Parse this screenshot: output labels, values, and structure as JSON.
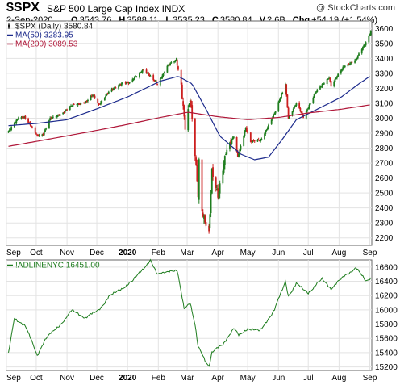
{
  "header": {
    "symbol": "$SPX",
    "name": "S&P 500 Large Cap Index",
    "exchange": "INDX",
    "source": "@ StockCharts.com",
    "date": "2-Sep-2020",
    "ohlc": {
      "open_label": "O",
      "open": "3543.76",
      "high_label": "H",
      "high": "3588.11",
      "low_label": "L",
      "low": "3535.23",
      "close_label": "C",
      "close": "3580.84",
      "volume_label": "V",
      "volume": "2.6B",
      "change_label": "Chg",
      "change": "+54.19 (+1.54%)"
    }
  },
  "chart_data": [
    {
      "type": "candlestick",
      "legend": [
        {
          "label": "$SPX (Daily) 3580.84",
          "color": "#1a1a1a"
        },
        {
          "label": "MA(50) 3283.95",
          "color": "#1c2a8c"
        },
        {
          "label": "MA(200) 3089.53",
          "color": "#b0183a"
        }
      ],
      "ylim": [
        2150,
        3650
      ],
      "y_ticks": [
        2200,
        2300,
        2400,
        2500,
        2600,
        2700,
        2800,
        2900,
        3000,
        3100,
        3200,
        3300,
        3400,
        3500,
        3600
      ],
      "x_ticks": [
        "Sep",
        "Oct",
        "Nov",
        "Dec",
        "2020",
        "Feb",
        "Mar",
        "Apr",
        "May",
        "Jun",
        "Jul",
        "Aug",
        "Sep"
      ],
      "x_range": [
        "2019-09-01",
        "2020-09-03"
      ],
      "colors": {
        "up": "#1e7d1e",
        "down": "#cc1f1f",
        "ma50": "#1c2a8c",
        "ma200": "#b0183a",
        "grid": "#e3e3e3"
      },
      "price_series": [
        [
          "2019-09-03",
          2906
        ],
        [
          "2019-09-13",
          3007
        ],
        [
          "2019-09-19",
          3006
        ],
        [
          "2019-10-02",
          2887
        ],
        [
          "2019-10-08",
          2893
        ],
        [
          "2019-10-15",
          2995
        ],
        [
          "2019-10-28",
          3039
        ],
        [
          "2019-11-08",
          3093
        ],
        [
          "2019-11-20",
          3108
        ],
        [
          "2019-11-27",
          3153
        ],
        [
          "2019-12-03",
          3093
        ],
        [
          "2019-12-12",
          3168
        ],
        [
          "2019-12-27",
          3240
        ],
        [
          "2020-01-03",
          3235
        ],
        [
          "2020-01-17",
          3329
        ],
        [
          "2020-01-31",
          3225
        ],
        [
          "2020-02-10",
          3352
        ],
        [
          "2020-02-19",
          3386
        ],
        [
          "2020-02-24",
          3225
        ],
        [
          "2020-02-28",
          2954
        ],
        [
          "2020-03-04",
          3130
        ],
        [
          "2020-03-09",
          2746
        ],
        [
          "2020-03-12",
          2480
        ],
        [
          "2020-03-13",
          2711
        ],
        [
          "2020-03-16",
          2386
        ],
        [
          "2020-03-20",
          2305
        ],
        [
          "2020-03-23",
          2237
        ],
        [
          "2020-03-26",
          2630
        ],
        [
          "2020-04-01",
          2470
        ],
        [
          "2020-04-09",
          2790
        ],
        [
          "2020-04-17",
          2875
        ],
        [
          "2020-04-21",
          2737
        ],
        [
          "2020-04-29",
          2940
        ],
        [
          "2020-05-04",
          2842
        ],
        [
          "2020-05-14",
          2852
        ],
        [
          "2020-05-29",
          3044
        ],
        [
          "2020-06-08",
          3232
        ],
        [
          "2020-06-11",
          3002
        ],
        [
          "2020-06-19",
          3098
        ],
        [
          "2020-06-26",
          3009
        ],
        [
          "2020-07-08",
          3169
        ],
        [
          "2020-07-22",
          3276
        ],
        [
          "2020-07-24",
          3216
        ],
        [
          "2020-08-06",
          3349
        ],
        [
          "2020-08-18",
          3390
        ],
        [
          "2020-08-28",
          3508
        ],
        [
          "2020-09-02",
          3581
        ]
      ],
      "ma50": [
        [
          "2019-09-03",
          2950
        ],
        [
          "2019-10-01",
          2965
        ],
        [
          "2019-11-01",
          2990
        ],
        [
          "2019-12-02",
          3065
        ],
        [
          "2020-01-02",
          3145
        ],
        [
          "2020-02-03",
          3248
        ],
        [
          "2020-02-21",
          3280
        ],
        [
          "2020-03-06",
          3230
        ],
        [
          "2020-03-20",
          3060
        ],
        [
          "2020-04-03",
          2880
        ],
        [
          "2020-04-24",
          2760
        ],
        [
          "2020-05-08",
          2722
        ],
        [
          "2020-05-22",
          2740
        ],
        [
          "2020-06-05",
          2860
        ],
        [
          "2020-06-19",
          2990
        ],
        [
          "2020-07-10",
          3060
        ],
        [
          "2020-08-03",
          3140
        ],
        [
          "2020-08-21",
          3230
        ],
        [
          "2020-09-02",
          3284
        ]
      ],
      "ma200": [
        [
          "2019-09-03",
          2812
        ],
        [
          "2019-10-01",
          2845
        ],
        [
          "2019-11-01",
          2882
        ],
        [
          "2019-12-02",
          2920
        ],
        [
          "2020-01-02",
          2960
        ],
        [
          "2020-02-03",
          3005
        ],
        [
          "2020-03-02",
          3040
        ],
        [
          "2020-04-01",
          3010
        ],
        [
          "2020-05-01",
          2990
        ],
        [
          "2020-06-01",
          3005
        ],
        [
          "2020-07-01",
          3035
        ],
        [
          "2020-08-03",
          3060
        ],
        [
          "2020-09-02",
          3090
        ]
      ]
    },
    {
      "type": "line",
      "legend": [
        {
          "label": "!ADLINENYC 16451.00",
          "color": "#1e7d1e"
        }
      ],
      "ylim": [
        15150,
        16700
      ],
      "y_ticks": [
        15200,
        15400,
        15600,
        15800,
        16000,
        16200,
        16400,
        16600
      ],
      "x_ticks": [
        "Sep",
        "Oct",
        "Nov",
        "Dec",
        "2020",
        "Feb",
        "Mar",
        "Apr",
        "May",
        "Jun",
        "Jul",
        "Aug",
        "Sep"
      ],
      "x_range": [
        "2019-09-01",
        "2020-09-03"
      ],
      "colors": {
        "line": "#1e7d1e",
        "grid": "#e3e3e3"
      },
      "series": [
        [
          "2019-09-03",
          15380
        ],
        [
          "2019-09-09",
          15880
        ],
        [
          "2019-09-20",
          15780
        ],
        [
          "2019-10-02",
          15360
        ],
        [
          "2019-10-10",
          15590
        ],
        [
          "2019-10-25",
          15790
        ],
        [
          "2019-11-06",
          15990
        ],
        [
          "2019-11-20",
          15890
        ],
        [
          "2019-12-03",
          16000
        ],
        [
          "2019-12-13",
          16180
        ],
        [
          "2020-01-06",
          16400
        ],
        [
          "2020-01-17",
          16590
        ],
        [
          "2020-01-24",
          16690
        ],
        [
          "2020-01-31",
          16490
        ],
        [
          "2020-02-07",
          16540
        ],
        [
          "2020-02-20",
          16540
        ],
        [
          "2020-02-27",
          16030
        ],
        [
          "2020-03-04",
          16100
        ],
        [
          "2020-03-09",
          15780
        ],
        [
          "2020-03-12",
          15480
        ],
        [
          "2020-03-16",
          15390
        ],
        [
          "2020-03-20",
          15270
        ],
        [
          "2020-03-23",
          15210
        ],
        [
          "2020-03-26",
          15400
        ],
        [
          "2020-04-06",
          15520
        ],
        [
          "2020-04-17",
          15740
        ],
        [
          "2020-04-22",
          15640
        ],
        [
          "2020-05-01",
          15740
        ],
        [
          "2020-05-13",
          15700
        ],
        [
          "2020-05-28",
          16000
        ],
        [
          "2020-06-08",
          16400
        ],
        [
          "2020-06-11",
          16200
        ],
        [
          "2020-06-19",
          16360
        ],
        [
          "2020-07-01",
          16240
        ],
        [
          "2020-07-15",
          16430
        ],
        [
          "2020-07-24",
          16300
        ],
        [
          "2020-08-07",
          16480
        ],
        [
          "2020-08-18",
          16590
        ],
        [
          "2020-08-24",
          16480
        ],
        [
          "2020-08-28",
          16400
        ],
        [
          "2020-09-02",
          16451
        ]
      ]
    }
  ]
}
